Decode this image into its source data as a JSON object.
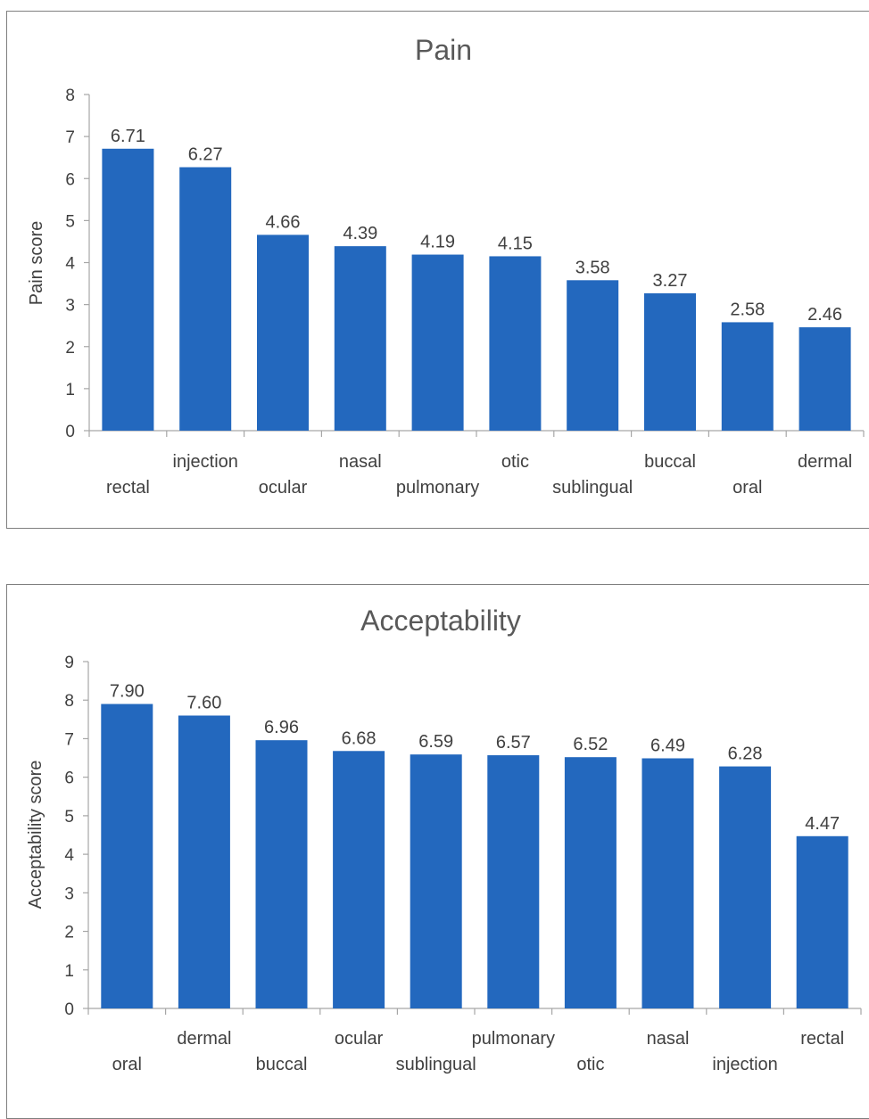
{
  "chart_data": [
    {
      "type": "bar",
      "title": "Pain",
      "xlabel": "",
      "ylabel": "Pain score",
      "ylim": [
        0,
        8
      ],
      "yticks": [
        "0",
        "1",
        "2",
        "3",
        "4",
        "5",
        "6",
        "7",
        "8"
      ],
      "categories": [
        "rectal",
        "injection",
        "ocular",
        "nasal",
        "pulmonary",
        "otic",
        "sublingual",
        "buccal",
        "oral",
        "dermal"
      ],
      "values": [
        6.71,
        6.27,
        4.66,
        4.39,
        4.19,
        4.15,
        3.58,
        3.27,
        2.58,
        2.46
      ],
      "value_labels": [
        "6.71",
        "6.27",
        "4.66",
        "4.39",
        "4.19",
        "4.15",
        "3.58",
        "3.27",
        "2.58",
        "2.46"
      ],
      "grid": false,
      "legend": "none",
      "bar_color": "#2368be"
    },
    {
      "type": "bar",
      "title": "Acceptability",
      "xlabel": "",
      "ylabel": "Acceptability score",
      "ylim": [
        0,
        9
      ],
      "yticks": [
        "0",
        "1",
        "2",
        "3",
        "4",
        "5",
        "6",
        "7",
        "8",
        "9"
      ],
      "categories": [
        "oral",
        "dermal",
        "buccal",
        "ocular",
        "sublingual",
        "pulmonary",
        "otic",
        "nasal",
        "injection",
        "rectal"
      ],
      "values": [
        7.9,
        7.6,
        6.96,
        6.68,
        6.59,
        6.57,
        6.52,
        6.49,
        6.28,
        4.47
      ],
      "value_labels": [
        "7.90",
        "7.60",
        "6.96",
        "6.68",
        "6.59",
        "6.57",
        "6.52",
        "6.49",
        "6.28",
        "4.47"
      ],
      "grid": false,
      "legend": "none",
      "bar_color": "#2368be"
    }
  ]
}
